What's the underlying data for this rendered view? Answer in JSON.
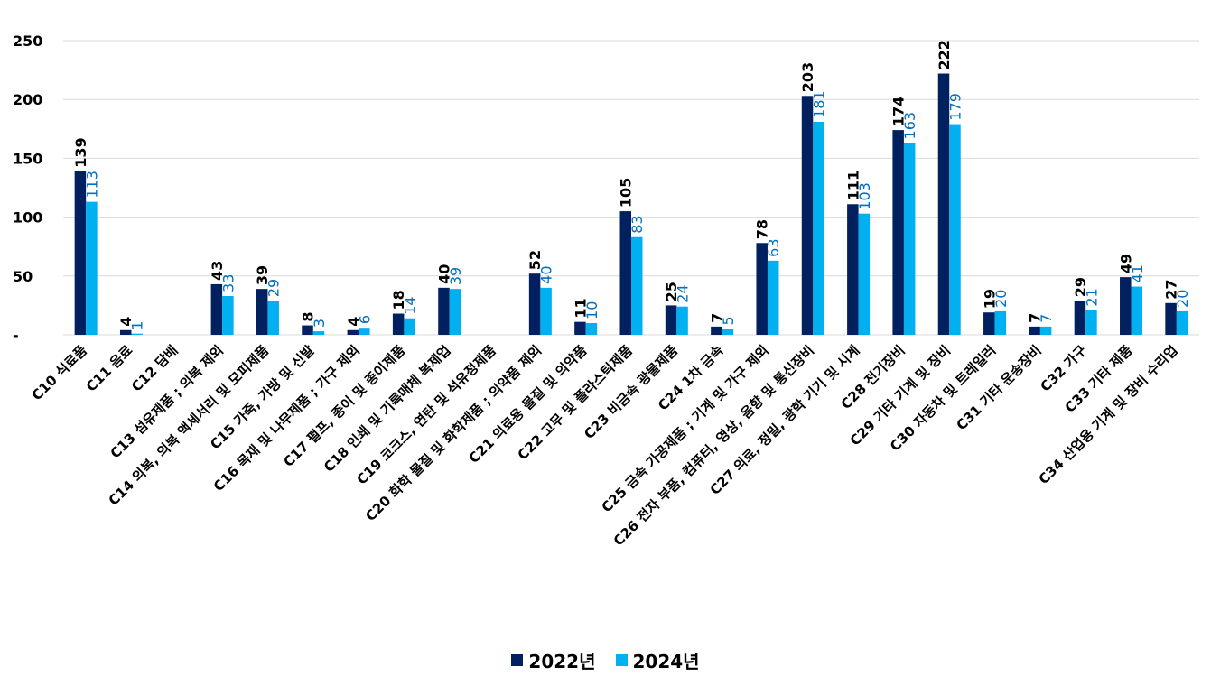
{
  "chart_data": {
    "type": "bar",
    "title": "",
    "xlabel": "",
    "ylabel": "",
    "ylim": [
      0,
      250
    ],
    "ytick_labels": [
      "-",
      "50",
      "100",
      "150",
      "200",
      "250"
    ],
    "grid": true,
    "legend_position": "bottom",
    "categories": [
      "C10 식료품",
      "C11 음료",
      "C12 담배",
      "C13 섬유제품 ; 의복 제외",
      "C14 의복, 의복 액세서리 및 모피제품",
      "C15 가죽, 가방 및 신발",
      "C16 목재 및 나무제품 ; 가구 제외",
      "C17 펄프, 종이 및 종이제품",
      "C18 인쇄 및 기록매체 복제업",
      "C19 코크스, 연탄 및 석유정제품",
      "C20 화학 물질 및 화학제품 ; 의약품 제외",
      "C21 의료용 물질 및 의약품",
      "C22 고무 및 플라스틱제품",
      "C23 비금속 광물제품",
      "C24 1차 금속",
      "C25 금속 가공제품 ; 기계 및 가구 제외",
      "C26 전자 부품, 컴퓨터, 영상, 음향 및 통신장비",
      "C27 의료, 정밀, 광학 기기 및 시계",
      "C28 전기장비",
      "C29 기타 기계 및 장비",
      "C30 자동차 및 트레일러",
      "C31 기타 운송장비",
      "C32 가구",
      "C33 기타 제품",
      "C34 산업용 기계 및 장비 수리업"
    ],
    "series": [
      {
        "name": "2022년",
        "color": "#002060",
        "values": [
          139,
          4,
          null,
          43,
          39,
          8,
          4,
          18,
          40,
          null,
          52,
          11,
          105,
          25,
          7,
          78,
          203,
          111,
          174,
          222,
          19,
          7,
          29,
          49,
          27
        ]
      },
      {
        "name": "2024년",
        "color": "#00B0F0",
        "values": [
          113,
          1,
          null,
          33,
          29,
          3,
          6,
          14,
          39,
          null,
          40,
          10,
          83,
          24,
          5,
          63,
          181,
          103,
          163,
          179,
          20,
          7,
          21,
          41,
          20
        ]
      }
    ]
  },
  "colors": {
    "grid": "#d9d9d9",
    "label_2024": "#0070c0",
    "label_2022": "#000000"
  }
}
